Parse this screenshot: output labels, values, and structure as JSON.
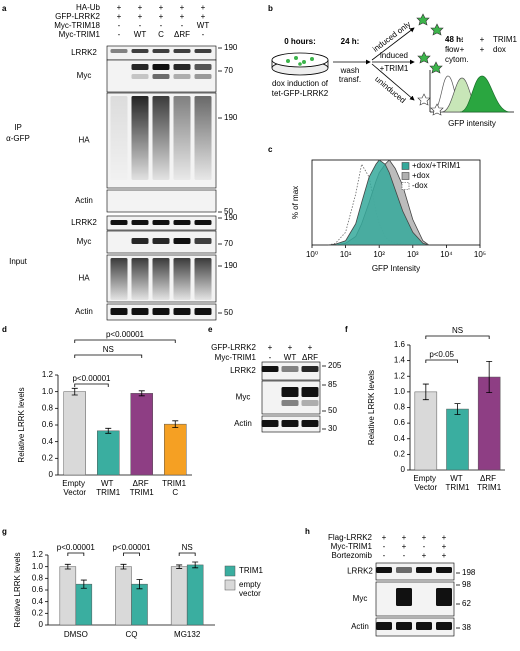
{
  "panel_letters": [
    "a",
    "b",
    "c",
    "d",
    "e",
    "f",
    "g",
    "h"
  ],
  "blots": {
    "a": {
      "conditions": [
        {
          "name": "HA-Ub",
          "lanes": [
            "+",
            "+",
            "+",
            "+",
            "+"
          ]
        },
        {
          "name": "GFP-LRRK2",
          "lanes": [
            "+",
            "+",
            "+",
            "+",
            "+"
          ]
        },
        {
          "name": "Myc-TRIM18",
          "lanes": [
            "-",
            "-",
            "-",
            "-",
            "WT"
          ]
        },
        {
          "name": "Myc-TRIM1",
          "lanes": [
            "-",
            "WT",
            "C",
            "ΔRF",
            "-"
          ]
        }
      ],
      "sections": [
        {
          "label": [
            "IP",
            "α-GFP"
          ],
          "rows": [
            {
              "name": "LRRK2",
              "markers": [
                190
              ]
            },
            {
              "name": "Myc",
              "markers": [
                70
              ]
            },
            {
              "name": "HA",
              "markers": [
                190
              ]
            },
            {
              "name": "Actin",
              "markers": [
                50
              ]
            }
          ]
        },
        {
          "label": [
            "Input"
          ],
          "rows": [
            {
              "name": "LRRK2",
              "markers": [
                190
              ]
            },
            {
              "name": "Myc",
              "markers": [
                70
              ]
            },
            {
              "name": "HA",
              "markers": [
                190
              ]
            },
            {
              "name": "Actin",
              "markers": [
                50
              ]
            }
          ]
        }
      ]
    },
    "e": {
      "conditions": [
        {
          "name": "GFP-LRRK2",
          "lanes": [
            "+",
            "+",
            "+"
          ]
        },
        {
          "name": "Myc-TRIM1",
          "lanes": [
            "-",
            "WT",
            "ΔRF"
          ]
        }
      ],
      "sections": [
        {
          "rows": [
            {
              "name": "LRRK2",
              "markers": [
                205
              ]
            },
            {
              "name": "Myc",
              "markers": [
                85,
                50
              ]
            },
            {
              "name": "Actin",
              "markers": [
                30
              ]
            }
          ]
        }
      ]
    },
    "h": {
      "conditions": [
        {
          "name": "Flag-LRRK2",
          "lanes": [
            "+",
            "+",
            "+",
            "+"
          ]
        },
        {
          "name": "Myc-TRIM1",
          "lanes": [
            "-",
            "+",
            "-",
            "+"
          ]
        },
        {
          "name": "Bortezomib",
          "lanes": [
            "-",
            "-",
            "+",
            "+"
          ]
        }
      ],
      "sections": [
        {
          "rows": [
            {
              "name": "LRRK2",
              "markers": [
                198
              ]
            },
            {
              "name": "Myc",
              "markers": [
                98,
                62
              ]
            },
            {
              "name": "Actin",
              "markers": [
                38
              ]
            }
          ]
        }
      ]
    }
  },
  "diagram": {
    "time_points": [
      "0 hours:",
      "24 h:",
      "48 h:"
    ],
    "dish_label": [
      "dox induction of",
      "tet-GFP-LRRK2"
    ],
    "step": [
      "wash",
      "transf."
    ],
    "branches": [
      "induced only",
      "induced",
      "+TRIM1",
      "uninduced"
    ],
    "readout": [
      "flow",
      "cytom."
    ],
    "histogram_conditions": [
      {
        "signs": [
          "-",
          "-",
          "+"
        ],
        "label": "TRIM1"
      },
      {
        "signs": [
          "-",
          "+",
          "+"
        ],
        "label": "dox"
      }
    ],
    "histogram_xlabel": "GFP intensity"
  },
  "chart_data": [
    {
      "type": "line",
      "ylabel": "% of max",
      "xlabel": "GFP Intensity",
      "xscale": "log",
      "xlim": [
        1,
        100000
      ],
      "xticks": [
        {
          "value": 1,
          "label": "10⁰"
        },
        {
          "value": 10,
          "label": "10¹"
        },
        {
          "value": 100,
          "label": "10²"
        },
        {
          "value": 1000,
          "label": "10³"
        },
        {
          "value": 10000,
          "label": "10⁴"
        },
        {
          "value": 100000,
          "label": "10⁵"
        }
      ],
      "ylim": [
        0,
        100
      ],
      "x": [
        3,
        5,
        10,
        20,
        30,
        50,
        80,
        100,
        150,
        200,
        300,
        500,
        1000,
        2000,
        3000
      ],
      "legend": "upper right",
      "series": [
        {
          "name": "+dox/+TRIM1",
          "color": "#35a99b",
          "values": [
            0,
            1,
            5,
            25,
            50,
            80,
            95,
            100,
            95,
            85,
            65,
            40,
            15,
            2,
            0
          ]
        },
        {
          "name": "+dox",
          "color": "#b0b0b0",
          "values": [
            0,
            0,
            2,
            10,
            25,
            50,
            75,
            85,
            95,
            100,
            90,
            70,
            30,
            5,
            0
          ]
        },
        {
          "name": "-dox",
          "color": "#ffffff",
          "line_style": "dotted",
          "values": [
            0,
            2,
            15,
            60,
            95,
            80,
            40,
            25,
            10,
            5,
            2,
            1,
            0,
            0,
            0
          ]
        }
      ]
    },
    {
      "type": "bar",
      "ylabel": "Relative LRRK levels",
      "categories": [
        "Empty Vector",
        "WT TRIM1",
        "ΔRF TRIM1",
        "TRIM1 C"
      ],
      "values": [
        1.0,
        0.53,
        0.98,
        0.61
      ],
      "errors": [
        0.04,
        0.03,
        0.03,
        0.04
      ],
      "colors": [
        "#d9d9d9",
        "#3aaea0",
        "#8e3e84",
        "#f5a023"
      ],
      "ylim": [
        0,
        1.2
      ],
      "yticks": [
        0,
        0.2,
        0.4,
        0.6,
        0.8,
        {
          "value": 1,
          "label": "1.0"
        },
        1.2
      ],
      "annotations": [
        "p<0.00001",
        "NS",
        "p<0.00001"
      ]
    },
    {
      "type": "bar",
      "ylabel": "Relative LRRK levels",
      "categories": [
        "Empty Vector",
        "WT TRIM1",
        "ΔRF TRIM1"
      ],
      "values": [
        1.0,
        0.78,
        1.19
      ],
      "errors": [
        0.1,
        0.07,
        0.2
      ],
      "colors": [
        "#d9d9d9",
        "#3aaea0",
        "#8e3e84"
      ],
      "ylim": [
        0,
        1.6
      ],
      "yticks": [
        0,
        0.2,
        0.4,
        0.6,
        0.8,
        {
          "value": 1,
          "label": "1.0"
        },
        1.2,
        1.4,
        1.6
      ],
      "annotations": [
        "NS",
        "p<0.05"
      ]
    },
    {
      "type": "grouped_bar",
      "ylabel": "Relative LRRK levels",
      "categories": [
        "DMSO",
        "CQ",
        "MG132"
      ],
      "series": [
        {
          "name": "empty vector",
          "color": "#d9d9d9",
          "values": [
            1.0,
            1.0,
            1.0
          ],
          "errors": [
            0.04,
            0.04,
            0.03
          ]
        },
        {
          "name": "TRIM1",
          "color": "#3aaea0",
          "values": [
            0.7,
            0.7,
            1.03
          ],
          "errors": [
            0.07,
            0.08,
            0.05
          ]
        }
      ],
      "ylim": [
        0,
        1.2
      ],
      "yticks": [
        0,
        0.2,
        0.4,
        0.6,
        0.8,
        {
          "value": 1,
          "label": "1.0"
        },
        1.2
      ],
      "legend": "right",
      "annotations": [
        "p<0.00001",
        "p<0.00001",
        "NS"
      ]
    }
  ]
}
